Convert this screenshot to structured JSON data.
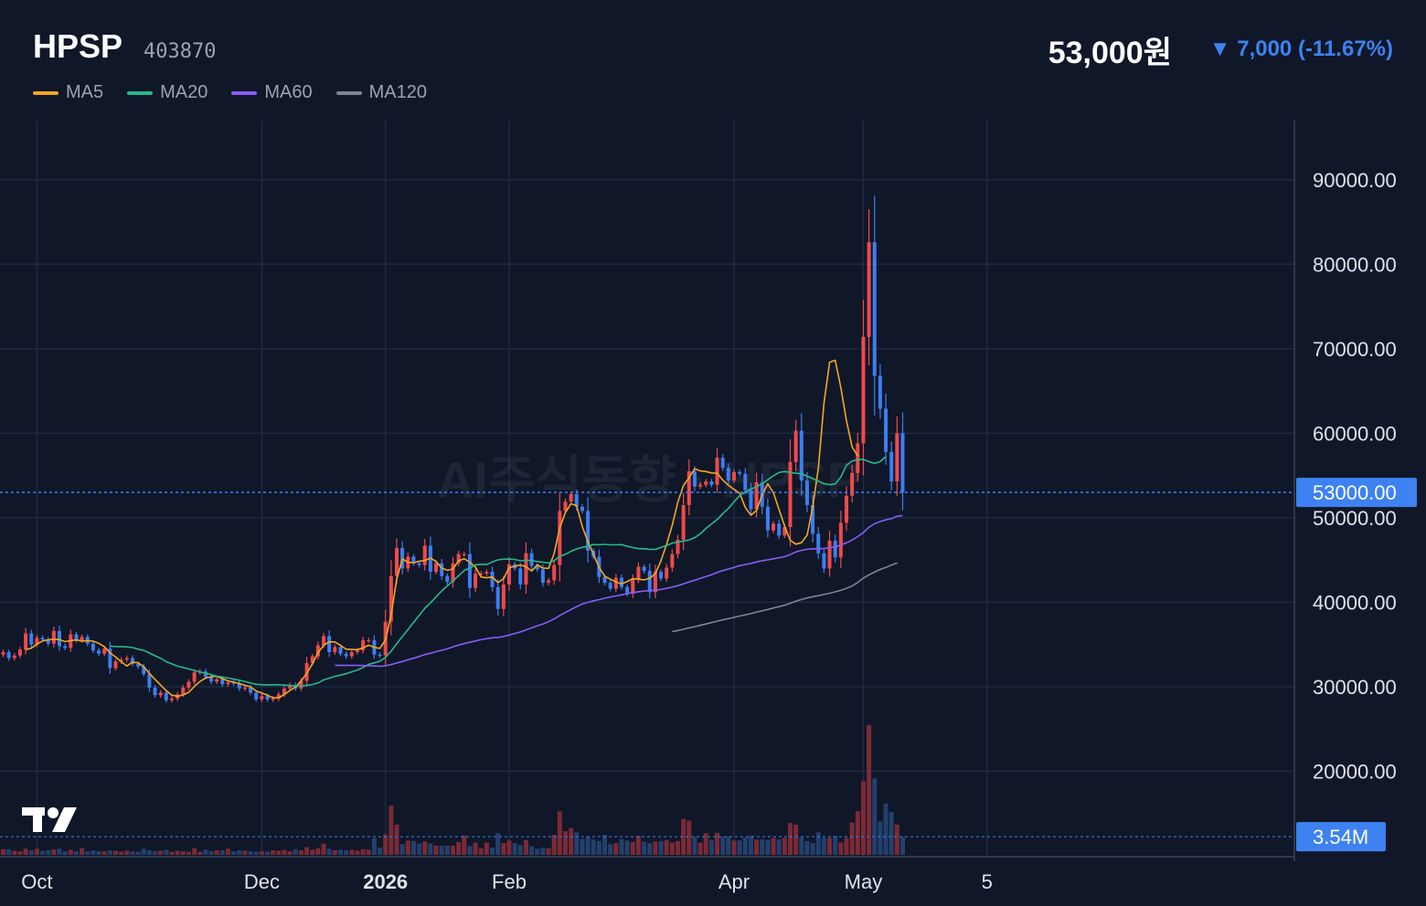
{
  "header": {
    "name": "HPSP",
    "code": "403870",
    "price": "53,000원",
    "change": "▼ 7,000 (-11.67%)"
  },
  "legend": [
    {
      "label": "MA5",
      "color": "#f5a623"
    },
    {
      "label": "MA20",
      "color": "#26b98a"
    },
    {
      "label": "MA60",
      "color": "#8b5cf6"
    },
    {
      "label": "MA120",
      "color": "#7b8594"
    }
  ],
  "watermark": "AI주식동향 · HPSP",
  "colors": {
    "background": "#0f1729",
    "grid": "#1f2a40",
    "up": "#ef4a4a",
    "down": "#3d7ef0",
    "axis_text": "#dfe3ea",
    "badge": "#3d82f0"
  },
  "chart_data": {
    "type": "candlestick",
    "y_range": [
      10000,
      97000
    ],
    "y_ticks": [
      "90000.00",
      "80000.00",
      "70000.00",
      "60000.00",
      "50000.00",
      "40000.00",
      "30000.00",
      "20000.00"
    ],
    "y_tick_values": [
      90000,
      80000,
      70000,
      60000,
      50000,
      40000,
      30000,
      20000
    ],
    "x_labels": [
      {
        "label": "Oct",
        "bar": 6,
        "bold": false
      },
      {
        "label": "Dec",
        "bar": 46,
        "bold": false
      },
      {
        "label": "2026",
        "bar": 68,
        "bold": true
      },
      {
        "label": "Feb",
        "bar": 90,
        "bold": false
      },
      {
        "label": "Apr",
        "bar": 130,
        "bold": false
      },
      {
        "label": "May",
        "bar": 153,
        "bold": false
      },
      {
        "label": "5",
        "bar": 175,
        "bold": false
      }
    ],
    "last_price_label": "53000.00",
    "last_price": 53000,
    "last_volume_label": "3.54M",
    "last_volume_m": 3.54,
    "volume_max_m": 26,
    "ma_keys": [
      "ma5",
      "ma20",
      "ma60",
      "ma120"
    ],
    "ma_start": {
      "ma5": 4,
      "ma20": 19,
      "ma60": 59,
      "ma120": 124
    },
    "series": {
      "close": [
        34100,
        33400,
        33700,
        34400,
        36300,
        35000,
        35800,
        35600,
        35100,
        36600,
        34800,
        34600,
        36200,
        35500,
        35900,
        35100,
        34300,
        33900,
        34500,
        32200,
        33000,
        33200,
        33400,
        32700,
        32400,
        31500,
        29900,
        29000,
        29300,
        28400,
        28600,
        29100,
        29900,
        30600,
        31700,
        31800,
        31200,
        30600,
        30900,
        30300,
        30500,
        30400,
        29800,
        29900,
        29300,
        28500,
        28900,
        28500,
        28600,
        29100,
        29800,
        30200,
        29800,
        30700,
        32800,
        33600,
        34900,
        36000,
        34100,
        34700,
        33900,
        33600,
        34100,
        34300,
        35500,
        35500,
        33800,
        33700,
        37700,
        43100,
        46400,
        44000,
        45400,
        44600,
        44400,
        46700,
        43600,
        44600,
        43100,
        42400,
        44600,
        45700,
        45700,
        41700,
        43400,
        43400,
        43600,
        41800,
        39200,
        42100,
        44500,
        44000,
        42100,
        45800,
        44300,
        43900,
        42300,
        42600,
        44400,
        50800,
        51900,
        52800,
        51300,
        50800,
        46100,
        45400,
        43000,
        42300,
        41600,
        42900,
        41800,
        41000,
        42700,
        44200,
        43700,
        41200,
        43600,
        42800,
        44100,
        45700,
        47400,
        51500,
        55500,
        53700,
        53900,
        54300,
        53900,
        57100,
        55900,
        54400,
        55400,
        55200,
        53300,
        51000,
        54200,
        51300,
        48500,
        49300,
        47900,
        48900,
        56600,
        60300,
        54400,
        51500,
        48100,
        45800,
        44000,
        47300,
        45300,
        49400,
        52600,
        55300,
        58800,
        71400,
        82600,
        66800,
        62900,
        57800,
        54300,
        60000,
        53000
      ],
      "ma5": [
        null,
        null,
        null,
        null,
        34380,
        34560,
        35040,
        35420,
        35560,
        35620,
        35580,
        35340,
        35460,
        35540,
        35400,
        35460,
        35400,
        35140,
        34740,
        34000,
        33520,
        32960,
        32460,
        32900,
        32840,
        32360,
        31580,
        30880,
        30200,
        29540,
        29000,
        28880,
        29020,
        29340,
        30040,
        30620,
        31040,
        31180,
        31240,
        30960,
        30700,
        30540,
        30380,
        30180,
        29980,
        29500,
        29270,
        28990,
        28700,
        28700,
        29070,
        29560,
        29960,
        30700,
        31590,
        32720,
        34020,
        34900,
        35320,
        35300,
        34900,
        34440,
        34420,
        34380,
        34600,
        34920,
        34660,
        34540,
        35560,
        38500,
        42750,
        45110,
        44750,
        44670,
        44850,
        44940,
        45220,
        44820,
        44050,
        43770,
        43940,
        44900,
        45160,
        44720,
        44170,
        42980,
        42900,
        43000,
        42330,
        42780,
        44100,
        44260,
        44410,
        44210,
        43700,
        44430,
        44040,
        44010,
        45760,
        48830,
        50600,
        51650,
        51440,
        48960,
        47180,
        45650,
        44130,
        43080,
        42720,
        42400,
        42180,
        42450,
        42800,
        42720,
        42650,
        42830,
        43380,
        44920,
        46850,
        49100,
        51840,
        53820,
        54720,
        55800,
        55540,
        55470,
        55310,
        55260,
        54460,
        53830,
        53360,
        52900,
        51220,
        50300,
        50860,
        52730,
        54020,
        52960,
        50980,
        48990,
        47330,
        46880,
        47050,
        47950,
        51260,
        55900,
        63560,
        68400,
        68640,
        65380,
        61480,
        58380,
        57320
      ],
      "ma20": [
        null,
        null,
        null,
        null,
        null,
        null,
        null,
        null,
        null,
        null,
        null,
        null,
        null,
        null,
        null,
        null,
        null,
        null,
        null,
        34800,
        34750,
        34740,
        34720,
        34640,
        34450,
        34290,
        34000,
        33670,
        33380,
        32970,
        32710,
        32440,
        32290,
        32100,
        31930,
        31760,
        31600,
        31430,
        31250,
        31150,
        31030,
        30910,
        30760,
        30620,
        30440,
        30290,
        30240,
        30220,
        30230,
        30240,
        30200,
        30140,
        30080,
        30090,
        30170,
        30260,
        30450,
        30820,
        31010,
        31230,
        31380,
        31540,
        31770,
        31980,
        32290,
        32650,
        32830,
        33020,
        33480,
        34210,
        35090,
        35940,
        36760,
        37620,
        38440,
        39290,
        39930,
        40630,
        41340,
        41950,
        42530,
        43140,
        43740,
        44040,
        44410,
        44500,
        44450,
        44780,
        45020,
        45100,
        45100,
        45070,
        44910,
        44960,
        44950,
        44810,
        44750,
        44640,
        44910,
        45440,
        45680,
        46030,
        46310,
        46500,
        46640,
        46830,
        46800,
        46850,
        46800,
        46800,
        46820,
        46630,
        46480,
        46330,
        46340,
        46250,
        46260,
        46490,
        46710,
        46990,
        47120,
        47240,
        47360,
        47640,
        48090,
        48740,
        49270,
        49790,
        50480,
        51100,
        51890,
        52600,
        53070,
        53420,
        53640,
        54040,
        54490,
        54970,
        55360,
        55470,
        55370,
        55260,
        55230,
        54920,
        54640,
        54330,
        54030,
        53910,
        54000,
        54820,
        56220,
        56700,
        56880,
        56890,
        56650,
        56440,
        56650,
        57240
      ],
      "ma60": [
        null,
        null,
        null,
        null,
        null,
        null,
        null,
        null,
        null,
        null,
        null,
        null,
        null,
        null,
        null,
        null,
        null,
        null,
        null,
        null,
        null,
        null,
        null,
        null,
        null,
        null,
        null,
        null,
        null,
        null,
        null,
        null,
        null,
        null,
        null,
        null,
        null,
        null,
        null,
        null,
        null,
        null,
        null,
        null,
        null,
        null,
        null,
        null,
        null,
        null,
        null,
        null,
        null,
        null,
        null,
        null,
        null,
        null,
        null,
        32540,
        32520,
        32520,
        32520,
        32520,
        32510,
        32490,
        32460,
        32430,
        32480,
        32620,
        32820,
        32990,
        33190,
        33380,
        33580,
        33810,
        33960,
        34160,
        34320,
        34490,
        34720,
        34930,
        35120,
        35270,
        35420,
        35570,
        35690,
        35800,
        35840,
        35950,
        36120,
        36310,
        36480,
        36740,
        36960,
        37200,
        37430,
        37700,
        38020,
        38420,
        38790,
        39150,
        39480,
        39780,
        39990,
        40170,
        40320,
        40480,
        40630,
        40750,
        40880,
        41010,
        41140,
        41240,
        41330,
        41360,
        41420,
        41510,
        41640,
        41780,
        41960,
        42180,
        42400,
        42600,
        42820,
        43040,
        43260,
        43530,
        43740,
        43930,
        44120,
        44330,
        44470,
        44580,
        44770,
        44920,
        45020,
        45150,
        45260,
        45390,
        45640,
        45950,
        46140,
        46270,
        46320,
        46330,
        46360,
        46440,
        46570,
        46780,
        47040,
        47360,
        47770,
        48250,
        48890,
        49280,
        49550,
        49750,
        49890,
        50170,
        50270
      ],
      "ma120": [
        null,
        null,
        null,
        null,
        null,
        null,
        null,
        null,
        null,
        null,
        null,
        null,
        null,
        null,
        null,
        null,
        null,
        null,
        null,
        null,
        null,
        null,
        null,
        null,
        null,
        null,
        null,
        null,
        null,
        null,
        null,
        null,
        null,
        null,
        null,
        null,
        null,
        null,
        null,
        null,
        null,
        null,
        null,
        null,
        null,
        null,
        null,
        null,
        null,
        null,
        null,
        null,
        null,
        null,
        null,
        null,
        null,
        null,
        null,
        null,
        null,
        null,
        null,
        null,
        null,
        null,
        null,
        null,
        null,
        null,
        null,
        null,
        null,
        null,
        null,
        null,
        null,
        null,
        null,
        null,
        null,
        null,
        null,
        null,
        null,
        null,
        null,
        null,
        null,
        null,
        null,
        null,
        null,
        null,
        null,
        null,
        null,
        null,
        null,
        null,
        null,
        null,
        null,
        null,
        null,
        null,
        null,
        null,
        null,
        null,
        null,
        null,
        null,
        null,
        null,
        null,
        null,
        null,
        null,
        36540,
        36650,
        36800,
        36970,
        37110,
        37270,
        37430,
        37590,
        37760,
        37920,
        38070,
        38210,
        38370,
        38510,
        38650,
        38830,
        38990,
        39150,
        39320,
        39480,
        39650,
        39880,
        40130,
        40330,
        40510,
        40660,
        40780,
        40930,
        41060,
        41230,
        41410,
        41650,
        41930,
        42340,
        42870,
        43240,
        43570,
        43880,
        44120,
        44410,
        44640
      ],
      "volume_m": [
        1.1,
        1.1,
        0.8,
        0.7,
        1.2,
        0.9,
        1.2,
        0.8,
        0.9,
        1.1,
        1.2,
        0.7,
        1.0,
        0.7,
        1.3,
        0.7,
        0.9,
        0.7,
        0.7,
        0.9,
        0.8,
        0.6,
        0.8,
        0.7,
        0.6,
        1.2,
        0.9,
        0.7,
        0.8,
        1.0,
        0.6,
        0.8,
        0.7,
        0.6,
        1.3,
        0.6,
        1.0,
        0.7,
        0.9,
        0.9,
        1.2,
        0.7,
        0.9,
        0.8,
        0.7,
        0.6,
        0.7,
        0.6,
        0.9,
        0.8,
        1.0,
        0.7,
        1.1,
        0.9,
        1.5,
        1.0,
        1.3,
        2.2,
        1.2,
        0.9,
        1.0,
        0.9,
        1.0,
        0.8,
        1.1,
        1.0,
        3.3,
        1.4,
        4.0,
        9.6,
        5.9,
        2.1,
        2.8,
        2.7,
        2.2,
        2.6,
        2.2,
        1.8,
        1.8,
        1.8,
        1.8,
        2.5,
        3.8,
        1.7,
        2.4,
        1.3,
        2.4,
        1.4,
        4.2,
        2.3,
        2.8,
        2.3,
        1.9,
        2.9,
        1.7,
        1.2,
        1.4,
        1.3,
        3.9,
        8.5,
        4.6,
        5.2,
        4.4,
        3.1,
        3.5,
        3.0,
        2.7,
        3.9,
        2.1,
        2.3,
        3.1,
        2.8,
        2.5,
        3.7,
        2.6,
        2.3,
        2.6,
        2.7,
        2.9,
        2.4,
        2.7,
        7.0,
        6.7,
        3.5,
        2.4,
        4.2,
        2.9,
        4.3,
        3.5,
        3.6,
        2.8,
        2.8,
        3.4,
        3.7,
        3.0,
        3.0,
        2.9,
        3.3,
        3.0,
        3.3,
        6.2,
        5.9,
        3.4,
        2.7,
        2.3,
        4.4,
        3.3,
        3.3,
        3.7,
        2.4,
        3.3,
        6.3,
        8.5,
        14.4,
        25.3,
        14.9,
        6.5,
        10.0,
        8.3,
        5.9,
        3.5
      ]
    }
  }
}
